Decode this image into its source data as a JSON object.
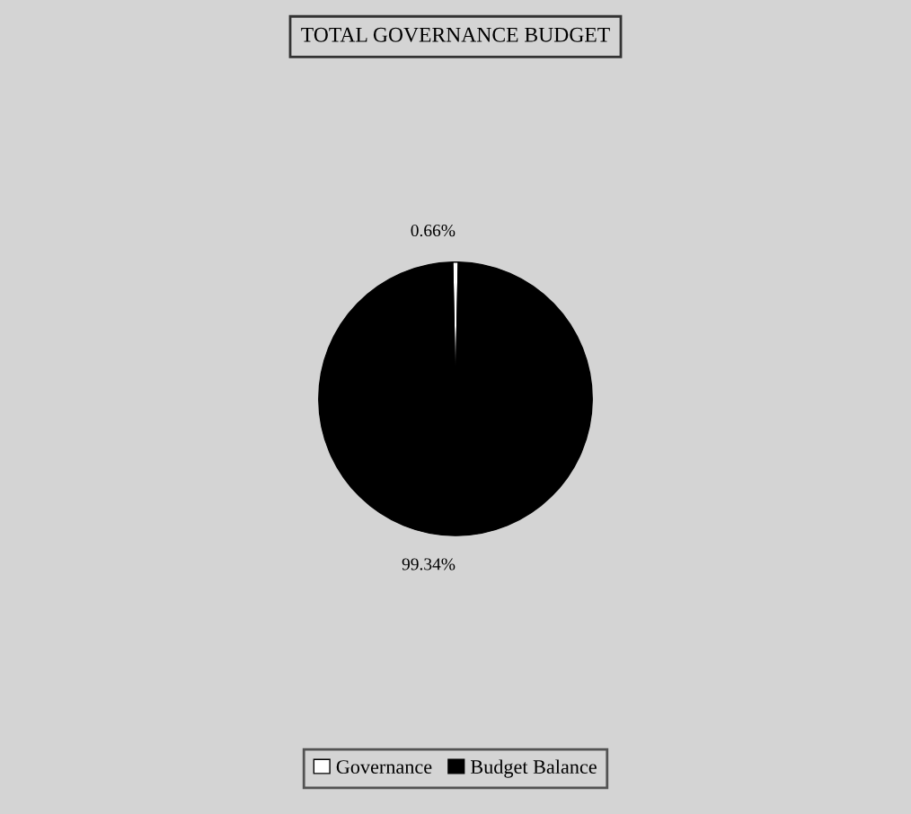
{
  "chart_data": {
    "type": "pie",
    "title": "TOTAL GOVERNANCE BUDGET",
    "categories": [
      "Governance",
      "Budget Balance"
    ],
    "values": [
      0.66,
      99.34
    ],
    "colors": [
      "#ffffff",
      "#000000"
    ],
    "value_labels": [
      "0.66%",
      "99.34%"
    ],
    "legend": "bottom"
  }
}
